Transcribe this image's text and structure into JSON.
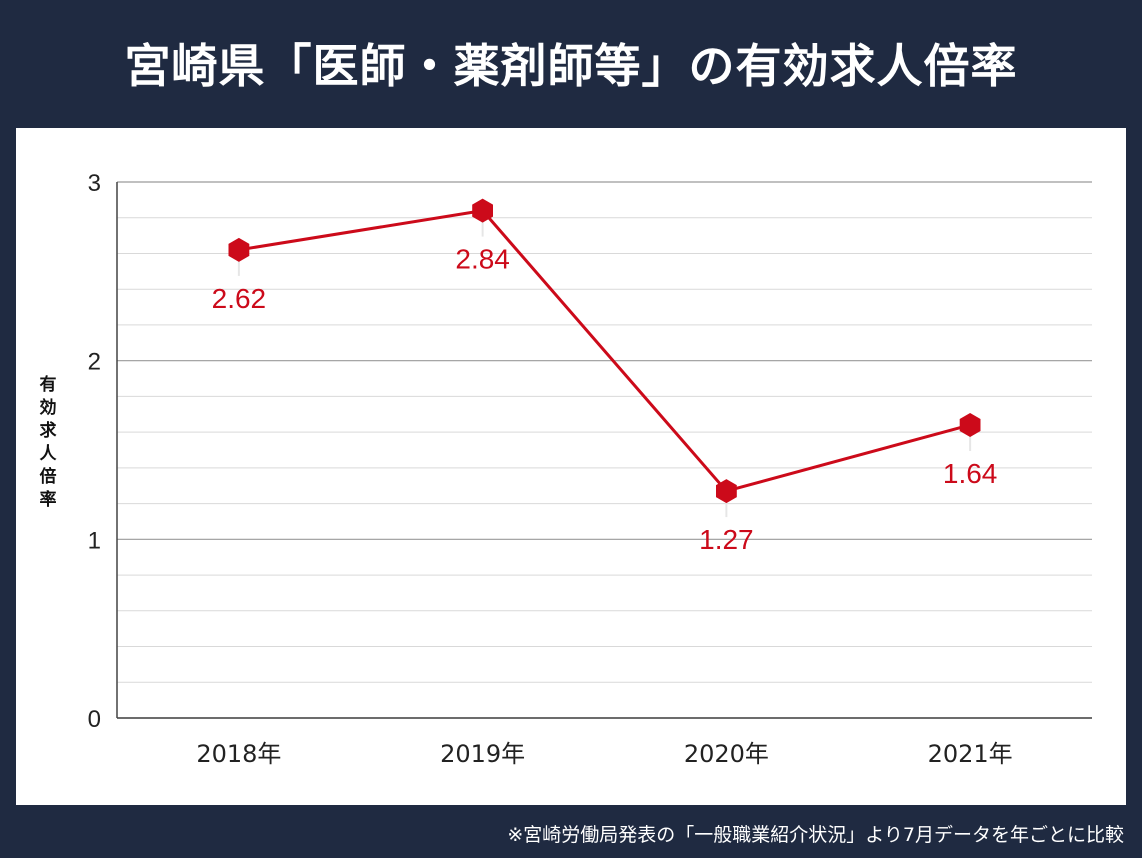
{
  "title": "宮崎県「医師・薬剤師等」の有効求人倍率",
  "footnote": "※宮崎労働局発表の「一般職業紹介状況」より7月データを年ごとに比較",
  "colors": {
    "background": "#1f2a41",
    "series": "#cc0a1a",
    "grid": "#d9d9d9",
    "axis": "#444444"
  },
  "chart_data": {
    "type": "line",
    "title": "宮崎県「医師・薬剤師等」の有効求人倍率",
    "xlabel": "",
    "ylabel": "有効求人倍率",
    "categories": [
      "2018年",
      "2019年",
      "2020年",
      "2021年"
    ],
    "values": [
      2.62,
      2.84,
      1.27,
      1.64
    ],
    "data_labels": [
      "2.62",
      "2.84",
      "1.27",
      "1.64"
    ],
    "ylim": [
      0,
      3
    ],
    "yticks": [
      "0",
      "1",
      "2",
      "3"
    ],
    "minor_grid_step": 0.2,
    "grid": true,
    "marker": "hexagon"
  }
}
